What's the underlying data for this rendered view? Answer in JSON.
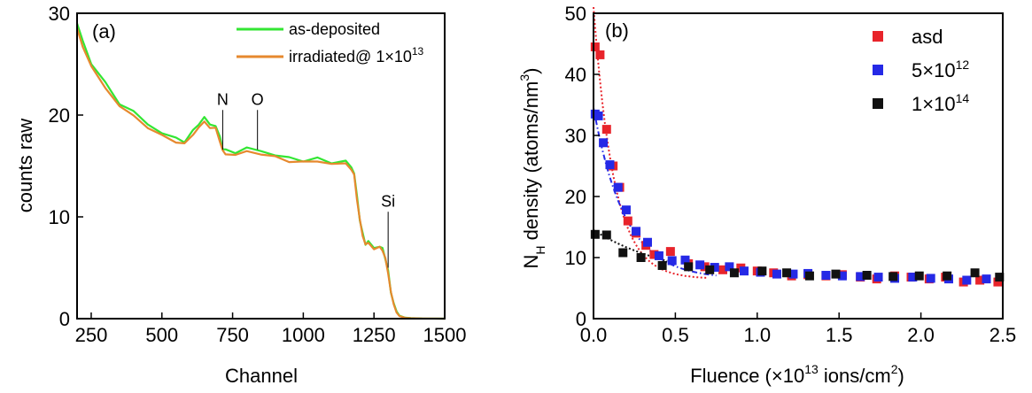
{
  "chart_data": [
    {
      "type": "line",
      "panel_label": "(a)",
      "xlabel": "Channel",
      "ylabel": "counts raw",
      "xlim": [
        200,
        1500
      ],
      "ylim": [
        0,
        30
      ],
      "xticks": [
        250,
        500,
        750,
        1000,
        1250,
        1500
      ],
      "yticks": [
        0,
        10,
        20,
        30
      ],
      "legend_placement": "top-right",
      "series": [
        {
          "name": "as-deposited",
          "color": "#33e633",
          "x": [
            200,
            220,
            250,
            300,
            350,
            400,
            450,
            500,
            550,
            580,
            610,
            630,
            650,
            670,
            690,
            705,
            715,
            725,
            760,
            800,
            850,
            900,
            950,
            1000,
            1050,
            1100,
            1150,
            1170,
            1180,
            1190,
            1200,
            1210,
            1220,
            1230,
            1250,
            1270,
            1280,
            1290,
            1300,
            1310,
            1320,
            1330,
            1340,
            1360,
            1380,
            1420,
            1500
          ],
          "y": [
            29.0,
            27.2,
            25.2,
            23.0,
            21.3,
            20.2,
            19.2,
            18.2,
            17.7,
            17.5,
            18.3,
            19.3,
            19.6,
            19.2,
            18.9,
            17.8,
            16.8,
            16.4,
            16.5,
            16.6,
            16.6,
            16.0,
            15.8,
            15.6,
            15.6,
            15.5,
            15.3,
            15.0,
            14.2,
            12.0,
            9.8,
            8.2,
            7.5,
            7.4,
            7.1,
            7.0,
            6.9,
            6.0,
            4.5,
            2.8,
            1.5,
            0.7,
            0.3,
            0.1,
            0.05,
            0.02,
            0.0
          ]
        },
        {
          "name": "irradiated@ 1×10¹³",
          "color": "#e6892e",
          "x": [
            200,
            220,
            250,
            300,
            350,
            400,
            450,
            500,
            550,
            580,
            610,
            630,
            650,
            670,
            690,
            705,
            715,
            725,
            760,
            800,
            850,
            900,
            950,
            1000,
            1050,
            1100,
            1150,
            1170,
            1180,
            1190,
            1200,
            1210,
            1220,
            1230,
            1250,
            1270,
            1280,
            1290,
            1300,
            1310,
            1320,
            1330,
            1340,
            1360,
            1380,
            1420,
            1500
          ],
          "y": [
            28.4,
            26.8,
            24.8,
            22.6,
            21.0,
            19.8,
            18.9,
            17.9,
            17.4,
            17.2,
            18.0,
            18.9,
            19.2,
            18.9,
            18.6,
            17.5,
            16.5,
            16.1,
            16.2,
            16.3,
            16.3,
            15.8,
            15.5,
            15.4,
            15.4,
            15.3,
            15.1,
            14.8,
            14.0,
            11.8,
            9.7,
            8.1,
            7.4,
            7.3,
            7.0,
            6.9,
            6.8,
            5.9,
            4.4,
            2.7,
            1.4,
            0.6,
            0.25,
            0.08,
            0.04,
            0.02,
            0.0
          ]
        }
      ],
      "annotations": [
        {
          "text": "N",
          "x": 715,
          "line_from": 16.6,
          "line_to": 20.5
        },
        {
          "text": "O",
          "x": 838,
          "line_from": 16.6,
          "line_to": 20.5
        },
        {
          "text": "Si",
          "x": 1300,
          "line_from": 5.0,
          "line_to": 10.5
        }
      ]
    },
    {
      "type": "scatter",
      "panel_label": "(b)",
      "xlabel_main": "Fluence (×10",
      "xlabel_sup1": "13",
      "xlabel_mid": " ions/cm",
      "xlabel_sup2": "2",
      "xlabel_end": ")",
      "ylabel_main": "N",
      "ylabel_sub": "H",
      "ylabel_mid": " density (atoms/nm",
      "ylabel_sup": "3",
      "ylabel_end": ")",
      "xlim": [
        0,
        2.5
      ],
      "ylim": [
        0,
        50
      ],
      "xticks": [
        "0.0",
        "0.5",
        "1.0",
        "1.5",
        "2.0",
        "2.5"
      ],
      "yticks": [
        0,
        10,
        20,
        30,
        40,
        50
      ],
      "legend_placement": "top-right",
      "series": [
        {
          "name": "asd",
          "legend_main": "asd",
          "legend_sup": "",
          "color": "#e8242b",
          "x": [
            0.01,
            0.04,
            0.08,
            0.12,
            0.16,
            0.21,
            0.26,
            0.32,
            0.37,
            0.47,
            0.58,
            0.68,
            0.79,
            0.9,
            1.0,
            1.1,
            1.21,
            1.31,
            1.42,
            1.52,
            1.63,
            1.73,
            1.84,
            1.94,
            2.05,
            2.15,
            2.26,
            2.36,
            2.47
          ],
          "y": [
            44.5,
            43.2,
            31.0,
            25.0,
            21.5,
            16.0,
            14.0,
            12.0,
            10.5,
            11.0,
            9.0,
            8.5,
            8.0,
            8.3,
            7.8,
            7.5,
            7.0,
            7.2,
            7.0,
            7.2,
            6.8,
            6.5,
            7.0,
            6.8,
            6.5,
            6.8,
            6.0,
            6.3,
            6.0
          ]
        },
        {
          "name": "5×10¹²",
          "legend_main": "5×10",
          "legend_sup": "12",
          "color": "#2529e6",
          "x": [
            0.01,
            0.03,
            0.06,
            0.1,
            0.15,
            0.2,
            0.26,
            0.33,
            0.4,
            0.48,
            0.56,
            0.65,
            0.74,
            0.83,
            0.92,
            1.02,
            1.12,
            1.22,
            1.31,
            1.42,
            1.52,
            1.63,
            1.74,
            1.84,
            1.95,
            2.06,
            2.17,
            2.28,
            2.4
          ],
          "y": [
            33.5,
            33.2,
            28.8,
            25.2,
            21.5,
            17.8,
            14.3,
            12.5,
            10.3,
            9.5,
            9.6,
            8.8,
            8.4,
            8.5,
            7.8,
            7.6,
            7.3,
            7.3,
            7.4,
            7.1,
            7.0,
            6.9,
            6.8,
            6.6,
            6.8,
            6.6,
            6.5,
            6.3,
            6.5
          ]
        },
        {
          "name": "1×10¹⁴",
          "legend_main": "1×10",
          "legend_sup": "14",
          "color": "#111111",
          "x": [
            0.01,
            0.08,
            0.18,
            0.29,
            0.42,
            0.58,
            0.71,
            0.86,
            1.03,
            1.18,
            1.32,
            1.48,
            1.67,
            1.83,
            1.99,
            2.16,
            2.33,
            2.48
          ],
          "y": [
            13.8,
            13.7,
            10.8,
            10.0,
            8.7,
            8.5,
            8.0,
            7.5,
            7.8,
            7.5,
            7.0,
            7.3,
            7.1,
            6.9,
            7.0,
            7.0,
            7.5,
            6.8
          ]
        }
      ],
      "fits": [
        {
          "color": "#e8242b",
          "style": "dotted",
          "a": 44.5,
          "k": 8.0,
          "c": 6.5,
          "x_end": 0.7
        },
        {
          "color": "#2529e6",
          "style": "dashdot",
          "a": 28.0,
          "k": 5.2,
          "c": 6.5,
          "x_end": 0.75
        },
        {
          "color": "#111111",
          "style": "dotted",
          "a": 8.5,
          "k": 2.0,
          "c": 6.0,
          "x_end": 0.45
        }
      ]
    }
  ]
}
